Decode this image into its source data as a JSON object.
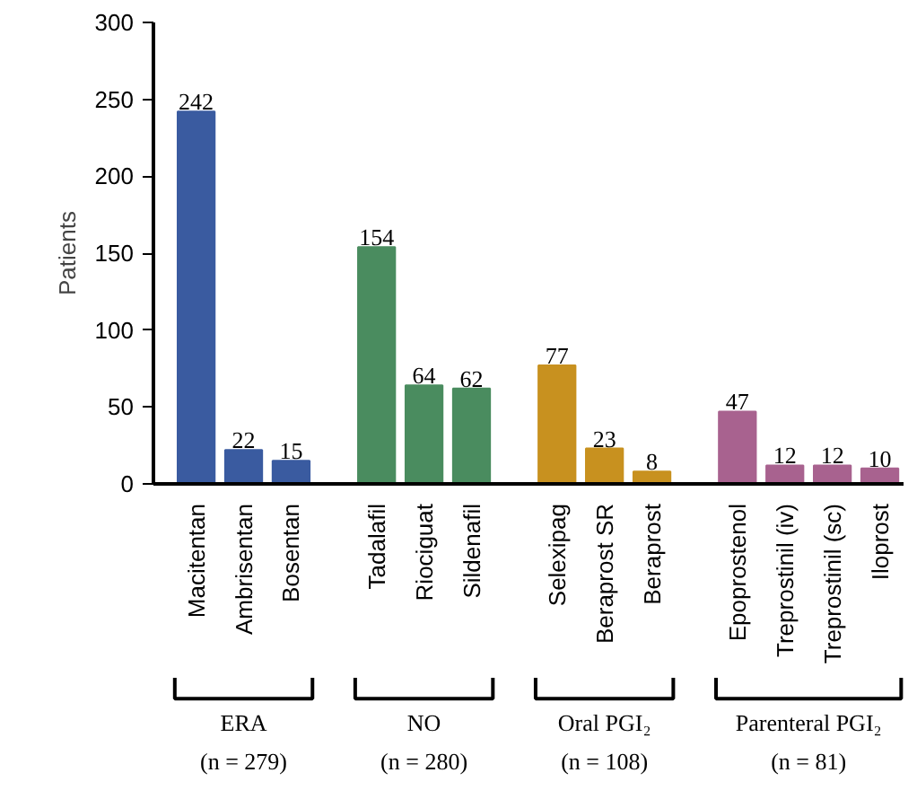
{
  "chart_data": {
    "type": "bar",
    "ylabel": "Patients",
    "categories": [
      "Macitentan",
      "Ambrisentan",
      "Bosentan",
      "Tadalafil",
      "Riociguat",
      "Sildenafil",
      "Selexipag",
      "Beraprost SR",
      "Beraprost",
      "Epoprostenol",
      "Treprostinil (iv)",
      "Treprostinil (sc)",
      "Iloprost"
    ],
    "values": [
      242,
      22,
      15,
      154,
      64,
      62,
      77,
      23,
      8,
      47,
      12,
      12,
      10
    ],
    "colors": [
      "#3a5ba0",
      "#3a5ba0",
      "#3a5ba0",
      "#4a8c5f",
      "#4a8c5f",
      "#4a8c5f",
      "#c8911f",
      "#c8911f",
      "#c8911f",
      "#a8628f",
      "#a8628f",
      "#a8628f",
      "#a8628f"
    ],
    "ylim": [
      0,
      300
    ],
    "yticks": [
      0,
      50,
      100,
      150,
      200,
      250,
      300
    ],
    "grid": false,
    "data_labels": true,
    "annotations": [
      "ERA\n(n = 279)",
      "NO\n(n = 280)",
      "Oral PGI₂\n(n = 108)",
      "Parenteral PGI₂\n(n = 81)"
    ]
  }
}
